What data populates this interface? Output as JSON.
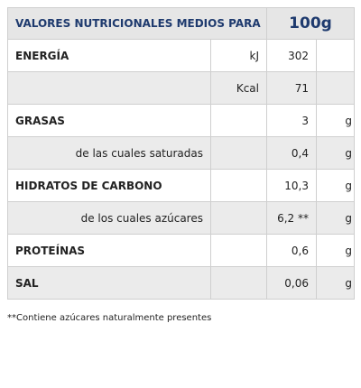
{
  "header": {
    "title": "VALORES NUTRICIONALES MEDIOS PARA",
    "amount": "100g"
  },
  "rows": [
    {
      "label": "ENERGÍA",
      "unit": "kJ",
      "value": "302"
    },
    {
      "unit": "Kcal",
      "value": "71"
    },
    {
      "label": "GRASAS",
      "value": "3",
      "unit2": "g"
    },
    {
      "label": "de las cuales saturadas",
      "indent": true,
      "value": "0,4",
      "unit2": "g"
    },
    {
      "label": "HIDRATOS DE CARBONO",
      "value": "10,3",
      "unit2": "g"
    },
    {
      "label": "de los cuales azúcares",
      "indent": true,
      "value": "6,2 **",
      "unit2": "g"
    },
    {
      "label": "PROTEÍNAS",
      "value": "0,6",
      "unit2": "g"
    },
    {
      "label": "SAL",
      "value": "0,06",
      "unit2": "g"
    }
  ],
  "footnote": "**Contiene azúcares naturalmente presentes"
}
